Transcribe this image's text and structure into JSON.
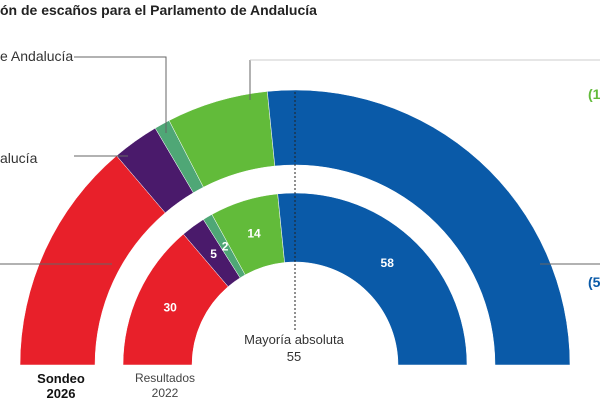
{
  "title": "ón de escaños para el Parlamento de Andalucía",
  "labels": {
    "upper_party": "e Andalucía",
    "lower_party": "alucía",
    "pp_side_top": "(1",
    "pp_side_bottom": "(5"
  },
  "rings": {
    "outer_caption_line1": "Sondeo",
    "outer_caption_line2": "2026",
    "inner_caption_line1": "Resultados",
    "inner_caption_line2": "2022"
  },
  "majority": {
    "label": "Mayoría absoluta",
    "value": "55"
  },
  "colors": {
    "red": "#e8202a",
    "purple": "#4a1a6b",
    "teal": "#4fa776",
    "green": "#62bb3a",
    "blue": "#0a5aa8"
  },
  "chart_data": {
    "type": "parliament-semicircle",
    "total_seats": 109,
    "majority": 55,
    "rings": [
      {
        "name": "Sondeo 2026",
        "segments": [
          {
            "color": "red",
            "seats": 30,
            "label": ""
          },
          {
            "color": "purple",
            "seats": 6,
            "label": ""
          },
          {
            "color": "teal",
            "seats": 2,
            "label": ""
          },
          {
            "color": "green",
            "seats": 13,
            "label": ""
          },
          {
            "color": "blue",
            "seats": 58,
            "label": ""
          }
        ]
      },
      {
        "name": "Resultados 2022",
        "segments": [
          {
            "color": "red",
            "seats": 30,
            "label": "30"
          },
          {
            "color": "purple",
            "seats": 5,
            "label": "5"
          },
          {
            "color": "teal",
            "seats": 2,
            "label": "2"
          },
          {
            "color": "green",
            "seats": 14,
            "label": "14"
          },
          {
            "color": "blue",
            "seats": 58,
            "label": "58"
          }
        ]
      }
    ]
  }
}
